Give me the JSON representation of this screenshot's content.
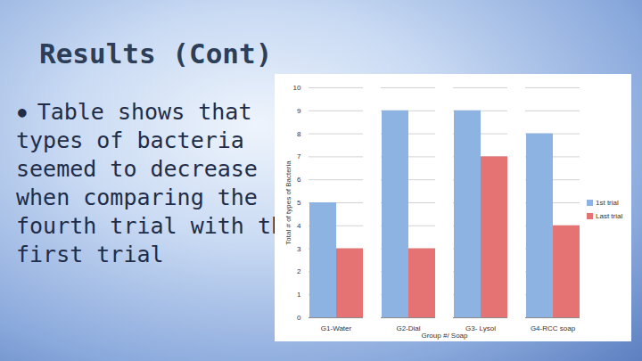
{
  "slide": {
    "title": "Results (Cont)",
    "bullet_lines": [
      "Table shows that",
      "types of bacteria",
      "seemed to decrease",
      "when comparing the",
      "fourth trial with the",
      "first trial"
    ]
  },
  "chart_data": {
    "type": "bar",
    "x_label": "Group #/ Soap",
    "y_label": "Total # of types of Bacteria",
    "categories": [
      "G1-Water",
      "G2-Dial",
      "G3- Lysol",
      "G4-RCC soap"
    ],
    "series": [
      {
        "name": "1st trial",
        "color": "#8db3e2",
        "values": [
          5,
          9,
          9,
          8
        ]
      },
      {
        "name": "Last trial",
        "color": "#e57373",
        "values": [
          3,
          3,
          7,
          4
        ]
      }
    ],
    "ylim": [
      0,
      10
    ],
    "yticks": [
      0,
      1,
      2,
      3,
      4,
      5,
      6,
      7,
      8,
      9,
      10
    ],
    "grid": true,
    "legend": "right"
  }
}
